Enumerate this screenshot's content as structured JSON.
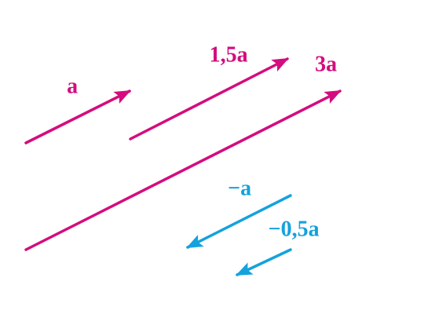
{
  "vectors": [
    {
      "label": "a⃗"
    },
    {
      "label": "1,5a⃗"
    },
    {
      "label": "3a⃗"
    },
    {
      "label": "−a⃗"
    },
    {
      "label": "−0,5a⃗"
    }
  ]
}
